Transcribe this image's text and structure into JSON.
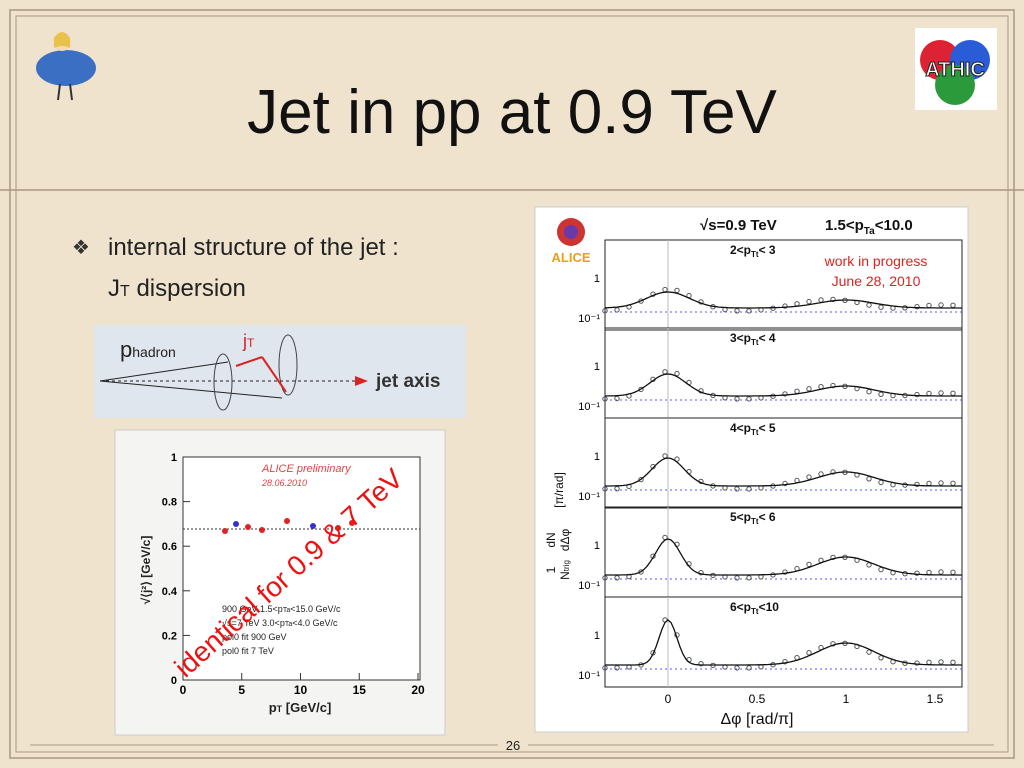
{
  "title": "Jet in pp at 0.9 TeV",
  "bullet": {
    "line1": "internal structure of the jet :",
    "line2": {
      "main": "J",
      "sub": "T",
      "rest": " dispersion"
    }
  },
  "diagram": {
    "p": "p",
    "p_sub": "hadron",
    "j": "j",
    "j_sub": "T",
    "axis": "jet axis"
  },
  "left_plot": {
    "label": "ALICE preliminary",
    "date": "28.06.2010",
    "y_ticks": [
      "1",
      "0.8",
      "0.6",
      "0.4",
      "0.2",
      "0"
    ],
    "x_ticks": [
      "0",
      "5",
      "10",
      "15",
      "20"
    ],
    "y_axis": "[GeV/c]",
    "y_axis_sym": "√⟨j²⟩",
    "x_axis": {
      "main": "p",
      "sub": "T",
      "rest": "   [GeV/c]"
    },
    "legend": [
      {
        "pre": "900 GeV 1.5<p",
        "sub": "Ta",
        "post": "<15.0 GeV/c"
      },
      {
        "pre": "√s=7 TeV 3.0<p",
        "sub": "Ta",
        "post": "<4.0 GeV/c"
      },
      {
        "pre": "pol0 fit 900 GeV",
        "sub": "",
        "post": ""
      },
      {
        "pre": "pol0 fit 7 TeV",
        "sub": "",
        "post": ""
      }
    ]
  },
  "overlay": "identical for 0.9 & 7 TeV",
  "right_plot": {
    "logo": "ALICE",
    "header": {
      "energy": "√s=0.9 TeV",
      "pre": "1.5<p",
      "sub": "Ta",
      "post": "<10.0"
    },
    "notes": [
      "work in progress",
      "June 28, 2010"
    ],
    "panels": [
      {
        "pre": "2<p",
        "sub": "Tt",
        "post": "< 3"
      },
      {
        "pre": "3<p",
        "sub": "Tt",
        "post": "< 4"
      },
      {
        "pre": "4<p",
        "sub": "Tt",
        "post": "< 5"
      },
      {
        "pre": "5<p",
        "sub": "Tt",
        "post": "< 6"
      },
      {
        "pre": "6<p",
        "sub": "Tt",
        "post": "<10"
      }
    ],
    "y_ticks": [
      "1",
      "10⁻¹"
    ],
    "x_ticks": [
      "0",
      "0.5",
      "1",
      "1.5"
    ],
    "x_axis": "Δφ   [rad/π]",
    "y_axis": {
      "num1": "1",
      "den1": "N",
      "den1_sub": "trig",
      "num2": "dN",
      "den2": "dΔφ",
      "unit": "[π/rad]"
    }
  },
  "logo_right": "ATHIC",
  "page_number": "26"
}
